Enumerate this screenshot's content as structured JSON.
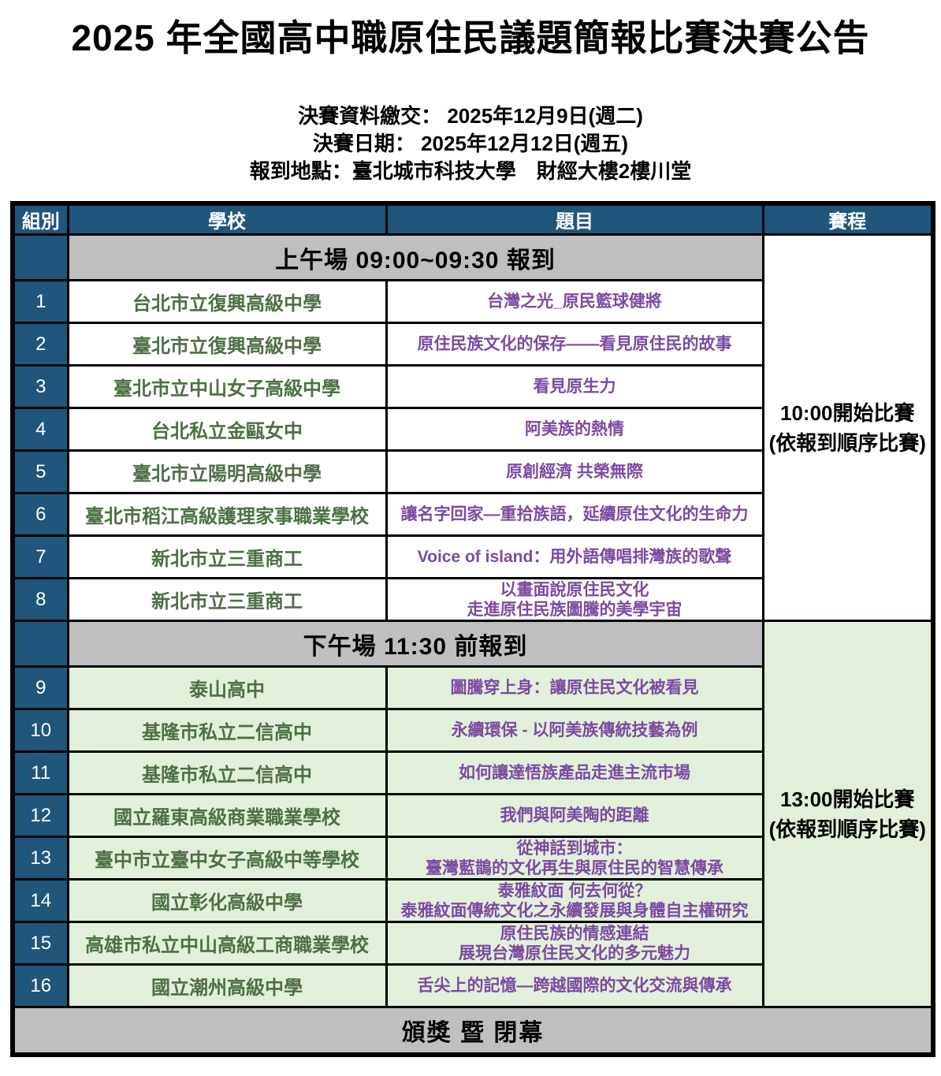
{
  "page": {
    "title": "2025 年全國高中職原住民議題簡報比賽決賽公告",
    "info_lines": [
      "決賽資料繳交： 2025年12月9日(週二)",
      "決賽日期： 2025年12月12日(週五)",
      "報到地點：臺北城市科技大學　財經大樓2樓川堂"
    ]
  },
  "table": {
    "headers": [
      "組別",
      "學校",
      "題目",
      "賽程"
    ],
    "sessions": [
      {
        "banner": "上午場 09:00~09:30 報到",
        "schedule": [
          "10:00開始比賽",
          "(依報到順序比賽)"
        ],
        "rows": [
          {
            "no": "1",
            "school": "台北市立復興高級中學",
            "topic": [
              "台灣之光_原民籃球健將"
            ]
          },
          {
            "no": "2",
            "school": "臺北市立復興高級中學",
            "topic": [
              "原住民族文化的保存——看見原住民的故事"
            ]
          },
          {
            "no": "3",
            "school": "臺北市立中山女子高級中學",
            "topic": [
              "看見原生力"
            ]
          },
          {
            "no": "4",
            "school": "台北私立金甌女中",
            "topic": [
              "阿美族的熱情"
            ]
          },
          {
            "no": "5",
            "school": "臺北市立陽明高級中學",
            "topic": [
              "原創經濟 共榮無際"
            ]
          },
          {
            "no": "6",
            "school": "臺北市稻江高級護理家事職業學校",
            "topic": [
              "讓名字回家—重拾族語，延續原住文化的生命力"
            ]
          },
          {
            "no": "7",
            "school": "新北市立三重商工",
            "topic": [
              "Voice of island：用外語傳唱排灣族的歌聲"
            ]
          },
          {
            "no": "8",
            "school": "新北市立三重商工",
            "topic": [
              "以畫面說原住民文化",
              "走進原住民族圖騰的美學宇宙"
            ]
          }
        ]
      },
      {
        "banner": "下午場 11:30 前報到",
        "schedule": [
          "13:00開始比賽",
          "(依報到順序比賽)"
        ],
        "rows": [
          {
            "no": "9",
            "school": "泰山高中",
            "topic": [
              "圖騰穿上身：讓原住民文化被看見"
            ]
          },
          {
            "no": "10",
            "school": "基隆市私立二信高中",
            "topic": [
              "永續環保 - 以阿美族傳統技藝為例"
            ]
          },
          {
            "no": "11",
            "school": "基隆市私立二信高中",
            "topic": [
              "如何讓達悟族產品走進主流市場"
            ]
          },
          {
            "no": "12",
            "school": "國立羅東高級商業職業學校",
            "topic": [
              "我們與阿美陶的距離"
            ]
          },
          {
            "no": "13",
            "school": "臺中市立臺中女子高級中等學校",
            "topic": [
              "從神話到城市：",
              "臺灣藍鵲的文化再生與原住民的智慧傳承"
            ]
          },
          {
            "no": "14",
            "school": "國立彰化高級中學",
            "topic": [
              "泰雅紋面 何去何從？",
              "泰雅紋面傳統文化之永續發展與身體自主權研究"
            ]
          },
          {
            "no": "15",
            "school": "高雄市私立中山高級工商職業學校",
            "topic": [
              "原住民族的情感連結",
              "展現台灣原住民文化的多元魅力"
            ]
          },
          {
            "no": "16",
            "school": "國立潮州高級中學",
            "topic": [
              "舌尖上的記憶—跨越國際的文化交流與傳承"
            ]
          }
        ]
      }
    ],
    "footer": "頒獎 暨 閉幕"
  },
  "colors": {
    "header_blue": "#20567B",
    "banner_gray": "#BFBFBF",
    "afternoon_green": "#E2EFDA",
    "school_text_green": "#4C7044",
    "topic_text_purple": "#7B4AA2",
    "border_black": "#000000"
  }
}
